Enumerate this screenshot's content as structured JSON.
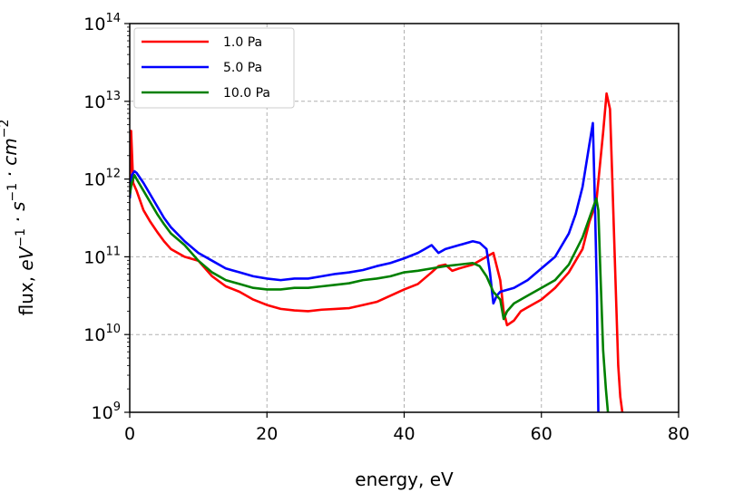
{
  "chart_data": {
    "type": "line",
    "title": "",
    "xlabel": "energy, eV",
    "ylabel": {
      "base": "flux, ",
      "unit_parts": [
        {
          "t": "eV",
          "sup": "−1"
        },
        {
          "t": " · s",
          "sup": "−1"
        },
        {
          "t": " · cm",
          "sup": "−2"
        }
      ]
    },
    "xlim": [
      0,
      80
    ],
    "ylim_log10": [
      9,
      14
    ],
    "yscale": "log",
    "grid": true,
    "legend_position": "top-left",
    "x_ticks": [
      {
        "value": 0,
        "label": "0"
      },
      {
        "value": 20,
        "label": "20"
      },
      {
        "value": 40,
        "label": "40"
      },
      {
        "value": 60,
        "label": "60"
      },
      {
        "value": 80,
        "label": "80"
      }
    ],
    "y_ticks": [
      {
        "exp": 9,
        "base": "10",
        "sup": "9"
      },
      {
        "exp": 10,
        "base": "10",
        "sup": "10"
      },
      {
        "exp": 11,
        "base": "10",
        "sup": "11"
      },
      {
        "exp": 12,
        "base": "10",
        "sup": "12"
      },
      {
        "exp": 13,
        "base": "10",
        "sup": "13"
      },
      {
        "exp": 14,
        "base": "10",
        "sup": "14"
      }
    ],
    "series": [
      {
        "name": "1.0 Pa",
        "color": "#ff0000",
        "x": [
          0,
          0.2,
          0.5,
          1,
          2,
          3,
          4,
          5,
          6,
          7,
          8,
          10,
          12,
          14,
          16,
          18,
          20,
          22,
          24,
          26,
          28,
          30,
          32,
          34,
          36,
          38,
          40,
          42,
          44,
          45,
          46,
          47,
          48,
          50,
          52,
          53,
          54,
          54.5,
          55,
          56,
          57,
          58,
          60,
          62,
          64,
          66,
          67,
          68,
          69,
          69.5,
          70,
          70.3,
          70.8,
          71.2,
          71.5,
          71.8
        ],
        "log_values": [
          11.8,
          12.62,
          11.95,
          11.85,
          11.6,
          11.45,
          11.32,
          11.2,
          11.1,
          11.05,
          11.0,
          10.95,
          10.75,
          10.62,
          10.55,
          10.45,
          10.38,
          10.33,
          10.31,
          10.3,
          10.32,
          10.33,
          10.34,
          10.38,
          10.42,
          10.5,
          10.58,
          10.65,
          10.8,
          10.88,
          10.9,
          10.82,
          10.85,
          10.9,
          11.0,
          11.05,
          10.7,
          10.3,
          10.12,
          10.18,
          10.3,
          10.35,
          10.45,
          10.6,
          10.8,
          11.1,
          11.45,
          11.7,
          12.6,
          13.1,
          12.9,
          12.1,
          10.7,
          9.6,
          9.2,
          9.0
        ]
      },
      {
        "name": "5.0 Pa",
        "color": "#0000ff",
        "x": [
          0,
          0.3,
          0.7,
          1,
          2,
          3,
          4,
          5,
          6,
          8,
          10,
          12,
          14,
          16,
          18,
          20,
          22,
          24,
          26,
          28,
          30,
          32,
          34,
          36,
          38,
          40,
          42,
          43,
          44,
          45,
          46,
          48,
          50,
          51,
          52,
          52.5,
          53,
          53.5,
          54,
          56,
          58,
          60,
          62,
          64,
          65,
          66,
          67,
          67.5,
          67.8,
          68.1,
          68.3
        ],
        "log_values": [
          11.75,
          12.05,
          12.1,
          12.08,
          11.95,
          11.8,
          11.65,
          11.5,
          11.38,
          11.2,
          11.05,
          10.95,
          10.85,
          10.8,
          10.75,
          10.72,
          10.7,
          10.72,
          10.72,
          10.75,
          10.78,
          10.8,
          10.83,
          10.88,
          10.92,
          10.98,
          11.05,
          11.1,
          11.15,
          11.05,
          11.1,
          11.15,
          11.2,
          11.18,
          11.1,
          10.8,
          10.4,
          10.5,
          10.55,
          10.6,
          10.7,
          10.85,
          11.0,
          11.3,
          11.55,
          11.9,
          12.45,
          12.72,
          11.7,
          10.5,
          9.0
        ]
      },
      {
        "name": "10.0 Pa",
        "color": "#008000",
        "x": [
          0,
          0.3,
          0.7,
          1,
          2,
          3,
          4,
          5,
          6,
          8,
          10,
          12,
          14,
          16,
          18,
          20,
          22,
          24,
          26,
          28,
          30,
          32,
          34,
          36,
          38,
          40,
          42,
          44,
          46,
          48,
          50,
          51,
          52,
          53,
          54,
          54.5,
          55,
          56,
          58,
          60,
          62,
          64,
          66,
          67,
          68,
          68.3,
          68.6,
          69,
          69.4,
          69.7
        ],
        "log_values": [
          11.8,
          11.95,
          12.05,
          12.0,
          11.85,
          11.7,
          11.55,
          11.42,
          11.3,
          11.15,
          10.95,
          10.8,
          10.7,
          10.65,
          10.6,
          10.58,
          10.58,
          10.6,
          10.6,
          10.62,
          10.64,
          10.66,
          10.7,
          10.72,
          10.75,
          10.8,
          10.82,
          10.85,
          10.88,
          10.9,
          10.92,
          10.88,
          10.75,
          10.55,
          10.45,
          10.2,
          10.3,
          10.4,
          10.5,
          10.6,
          10.7,
          10.9,
          11.25,
          11.5,
          11.75,
          11.6,
          10.8,
          9.8,
          9.3,
          9.0
        ]
      }
    ]
  }
}
